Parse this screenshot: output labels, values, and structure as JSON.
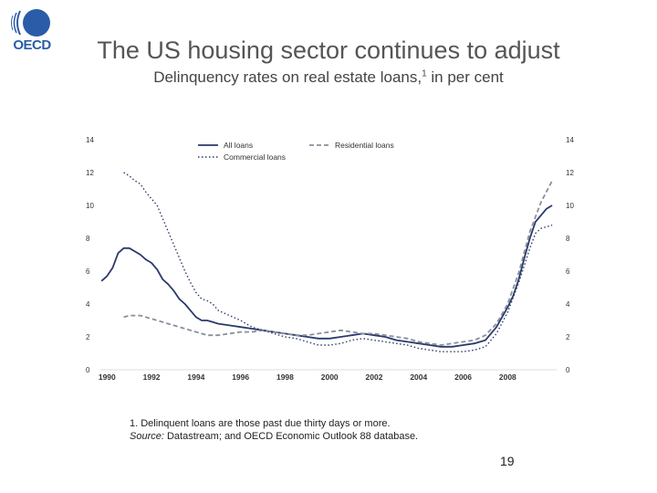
{
  "header": {
    "logo_text": "OECD",
    "title": "The US housing sector continues to adjust",
    "subtitle": "Delinquency rates on real estate loans,",
    "subtitle_sup": "1",
    "subtitle_tail": " in per cent"
  },
  "colors": {
    "all_loans": "#2b3a6b",
    "residential": "#8a8f9c",
    "commercial": "#2b3a6b",
    "logo": "#2a5ca8"
  },
  "footnote": {
    "line1": "1. Delinquent loans are those past due thirty days or more.",
    "source_label": "Source:",
    "source_text": " Datastream; and OECD Economic Outlook 88 database."
  },
  "page_number": "19",
  "chart_data": {
    "type": "line",
    "title": "",
    "xlabel": "",
    "ylabel": "",
    "ylim": [
      0,
      14
    ],
    "xlim": [
      1989.7,
      2010.2
    ],
    "y_ticks": [
      0,
      2,
      4,
      6,
      8,
      10,
      12,
      14
    ],
    "x_ticks": [
      1990,
      1992,
      1994,
      1996,
      1998,
      2000,
      2002,
      2004,
      2006,
      2008
    ],
    "grid": false,
    "legend_position": "top",
    "series": [
      {
        "name": "All loans",
        "style": "solid",
        "x": [
          1989.75,
          1990.0,
          1990.25,
          1990.5,
          1990.75,
          1991.0,
          1991.25,
          1991.5,
          1991.75,
          1992.0,
          1992.25,
          1992.5,
          1992.75,
          1993.0,
          1993.25,
          1993.5,
          1993.75,
          1994.0,
          1994.25,
          1994.5,
          1994.75,
          1995.0,
          1995.5,
          1996.0,
          1996.5,
          1997.0,
          1997.5,
          1998.0,
          1998.5,
          1999.0,
          1999.5,
          2000.0,
          2000.5,
          2001.0,
          2001.5,
          2002.0,
          2002.5,
          2003.0,
          2003.5,
          2004.0,
          2004.5,
          2005.0,
          2005.5,
          2006.0,
          2006.5,
          2007.0,
          2007.5,
          2008.0,
          2008.25,
          2008.5,
          2008.75,
          2009.0,
          2009.25,
          2009.5,
          2009.75,
          2010.0
        ],
        "y": [
          5.4,
          5.7,
          6.2,
          7.1,
          7.4,
          7.4,
          7.2,
          7.0,
          6.7,
          6.5,
          6.1,
          5.5,
          5.2,
          4.8,
          4.3,
          4.0,
          3.6,
          3.2,
          3.0,
          3.0,
          2.9,
          2.8,
          2.7,
          2.6,
          2.5,
          2.4,
          2.3,
          2.2,
          2.1,
          2.0,
          1.9,
          1.9,
          2.0,
          2.1,
          2.2,
          2.1,
          2.0,
          1.8,
          1.7,
          1.6,
          1.5,
          1.4,
          1.4,
          1.5,
          1.6,
          1.8,
          2.6,
          3.8,
          4.5,
          5.5,
          6.8,
          8.0,
          9.0,
          9.4,
          9.8,
          10.0
        ]
      },
      {
        "name": "Residential loans",
        "style": "dashed",
        "x": [
          1990.75,
          1991.0,
          1991.5,
          1992.0,
          1992.5,
          1993.0,
          1993.5,
          1994.0,
          1994.5,
          1995.0,
          1995.5,
          1996.0,
          1996.5,
          1997.0,
          1997.5,
          1998.0,
          1998.5,
          1999.0,
          1999.5,
          2000.0,
          2000.5,
          2001.0,
          2001.5,
          2002.0,
          2002.5,
          2003.0,
          2003.5,
          2004.0,
          2004.5,
          2005.0,
          2005.5,
          2006.0,
          2006.5,
          2007.0,
          2007.5,
          2008.0,
          2008.5,
          2009.0,
          2009.5,
          2010.0
        ],
        "y": [
          3.2,
          3.3,
          3.3,
          3.1,
          2.9,
          2.7,
          2.5,
          2.3,
          2.1,
          2.1,
          2.2,
          2.3,
          2.3,
          2.4,
          2.3,
          2.2,
          2.1,
          2.1,
          2.2,
          2.3,
          2.4,
          2.3,
          2.2,
          2.2,
          2.1,
          2.0,
          1.9,
          1.7,
          1.6,
          1.5,
          1.6,
          1.7,
          1.8,
          2.1,
          2.8,
          4.0,
          5.9,
          8.4,
          10.2,
          11.5
        ]
      },
      {
        "name": "Commercial loans",
        "style": "dotted",
        "x": [
          1990.75,
          1991.0,
          1991.25,
          1991.5,
          1991.75,
          1992.0,
          1992.25,
          1992.5,
          1992.75,
          1993.0,
          1993.25,
          1993.5,
          1993.75,
          1994.0,
          1994.25,
          1994.5,
          1994.75,
          1995.0,
          1995.5,
          1996.0,
          1996.5,
          1997.0,
          1997.5,
          1998.0,
          1998.5,
          1999.0,
          1999.5,
          2000.0,
          2000.5,
          2001.0,
          2001.5,
          2002.0,
          2002.5,
          2003.0,
          2003.5,
          2004.0,
          2004.5,
          2005.0,
          2005.5,
          2006.0,
          2006.5,
          2007.0,
          2007.5,
          2008.0,
          2008.5,
          2009.0,
          2009.25,
          2009.5,
          2009.75,
          2010.0
        ],
        "y": [
          12.0,
          11.8,
          11.5,
          11.3,
          10.8,
          10.4,
          10.0,
          9.2,
          8.4,
          7.6,
          6.8,
          6.0,
          5.3,
          4.7,
          4.3,
          4.2,
          4.0,
          3.6,
          3.3,
          3.0,
          2.6,
          2.4,
          2.2,
          2.0,
          1.9,
          1.7,
          1.5,
          1.5,
          1.6,
          1.8,
          1.9,
          1.8,
          1.7,
          1.6,
          1.5,
          1.3,
          1.2,
          1.1,
          1.1,
          1.1,
          1.2,
          1.4,
          2.2,
          3.5,
          5.3,
          7.4,
          8.3,
          8.6,
          8.7,
          8.8
        ]
      }
    ]
  }
}
